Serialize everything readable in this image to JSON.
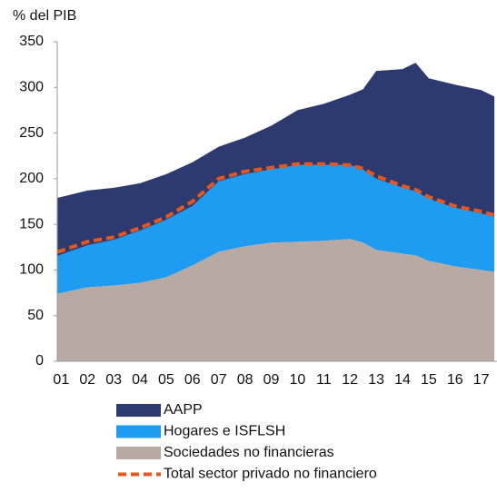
{
  "chart_data": {
    "type": "stacked-area",
    "y_label": "% del PIB",
    "x": [
      0.85,
      1,
      2,
      3,
      4,
      5,
      6,
      7,
      8,
      9,
      10,
      11,
      12,
      12.5,
      13,
      14,
      14.5,
      15,
      16,
      17,
      17.5
    ],
    "xlim": [
      0.85,
      17.6
    ],
    "xticks": [
      {
        "value": 1,
        "label": "01"
      },
      {
        "value": 2,
        "label": "02"
      },
      {
        "value": 3,
        "label": "03"
      },
      {
        "value": 4,
        "label": "04"
      },
      {
        "value": 5,
        "label": "05"
      },
      {
        "value": 6,
        "label": "06"
      },
      {
        "value": 7,
        "label": "07"
      },
      {
        "value": 8,
        "label": "08"
      },
      {
        "value": 9,
        "label": "09"
      },
      {
        "value": 10,
        "label": "10"
      },
      {
        "value": 11,
        "label": "11"
      },
      {
        "value": 12,
        "label": "12"
      },
      {
        "value": 13,
        "label": "13"
      },
      {
        "value": 14,
        "label": "14"
      },
      {
        "value": 15,
        "label": "15"
      },
      {
        "value": 16,
        "label": "16"
      },
      {
        "value": 17,
        "label": "17"
      }
    ],
    "ylim": [
      0,
      350
    ],
    "yticks": [
      0,
      50,
      100,
      150,
      200,
      250,
      300,
      350
    ],
    "series": [
      {
        "name": "Sociedades no financieras",
        "color": "#b8aaa3",
        "values": [
          74,
          75,
          81,
          83,
          86,
          92,
          105,
          120,
          126,
          130,
          131,
          132,
          134,
          130,
          122,
          118,
          116,
          110,
          104,
          100,
          98
        ]
      },
      {
        "name": "Hogares e ISFLSH",
        "color": "#1e9cf2",
        "values": [
          41,
          42,
          46,
          50,
          57,
          63,
          65,
          77,
          79,
          80,
          84,
          83,
          81,
          80,
          78,
          72,
          70,
          68,
          64,
          62,
          60
        ]
      },
      {
        "name": "AAPP",
        "color": "#2d3a6f",
        "values": [
          64,
          63,
          60,
          57,
          52,
          50,
          48,
          38,
          40,
          48,
          60,
          67,
          77,
          88,
          118,
          130,
          141,
          132,
          135,
          135,
          132
        ]
      }
    ],
    "line_series": {
      "name": "Total sector privado no financiero",
      "color": "#e8561c",
      "values": [
        120,
        121,
        131,
        136,
        146,
        158,
        175,
        200,
        208,
        212,
        216,
        216,
        215,
        211,
        203,
        192,
        188,
        180,
        170,
        164,
        160
      ]
    }
  }
}
